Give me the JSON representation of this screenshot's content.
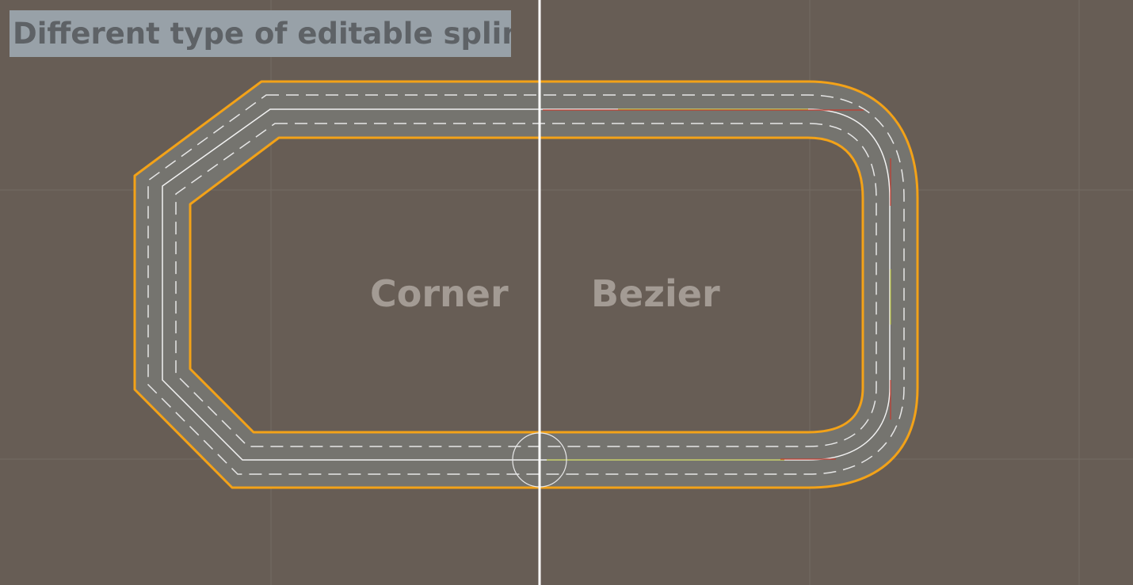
{
  "caption": "Different type of editable spline",
  "segments": {
    "corner_label": "Corner",
    "bezier_label": "Bezier"
  },
  "colors": {
    "background": "#675d55",
    "grid_line": "#736a62",
    "asphalt": "#757470",
    "road_edge": "#f3a218",
    "lane_marking": "#e6e6e6",
    "divider": "#ffffff",
    "handle_red": "#c43a2e",
    "handle_yellow": "#b4bf2a"
  }
}
